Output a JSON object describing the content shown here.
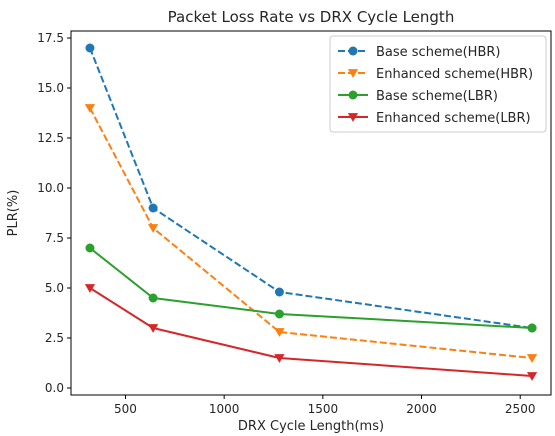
{
  "chart_data": {
    "type": "line",
    "title": "Packet Loss Rate vs DRX Cycle Length",
    "xlabel": "DRX Cycle Length(ms)",
    "ylabel": "PLR(%)",
    "x": [
      320,
      640,
      1280,
      2560
    ],
    "xlim": [
      224,
      2656
    ],
    "ylim": [
      -0.35,
      17.85
    ],
    "xticks": [
      500,
      1000,
      1500,
      2000,
      2500
    ],
    "xtick_labels": [
      "500",
      "1000",
      "1500",
      "2000",
      "2500"
    ],
    "yticks": [
      0,
      2.5,
      5,
      7.5,
      10,
      12.5,
      15,
      17.5
    ],
    "ytick_labels": [
      "0.0",
      "2.5",
      "5.0",
      "7.5",
      "10.0",
      "12.5",
      "15.0",
      "17.5"
    ],
    "grid": false,
    "legend_position": "top-right",
    "series": [
      {
        "name": "Base scheme(HBR)",
        "values": [
          17.0,
          9.0,
          4.8,
          3.0
        ],
        "color": "#1f77b4",
        "marker": "circle",
        "dash": "dashed"
      },
      {
        "name": "Enhanced scheme(HBR)",
        "values": [
          14.0,
          8.0,
          2.8,
          1.5
        ],
        "color": "#ff7f0e",
        "marker": "triangle-down",
        "dash": "dashed"
      },
      {
        "name": "Base scheme(LBR)",
        "values": [
          7.0,
          4.5,
          3.7,
          3.0
        ],
        "color": "#2ca02c",
        "marker": "circle",
        "dash": "solid"
      },
      {
        "name": "Enhanced scheme(LBR)",
        "values": [
          5.0,
          3.0,
          1.5,
          0.6
        ],
        "color": "#d62728",
        "marker": "triangle-down",
        "dash": "solid"
      }
    ]
  }
}
